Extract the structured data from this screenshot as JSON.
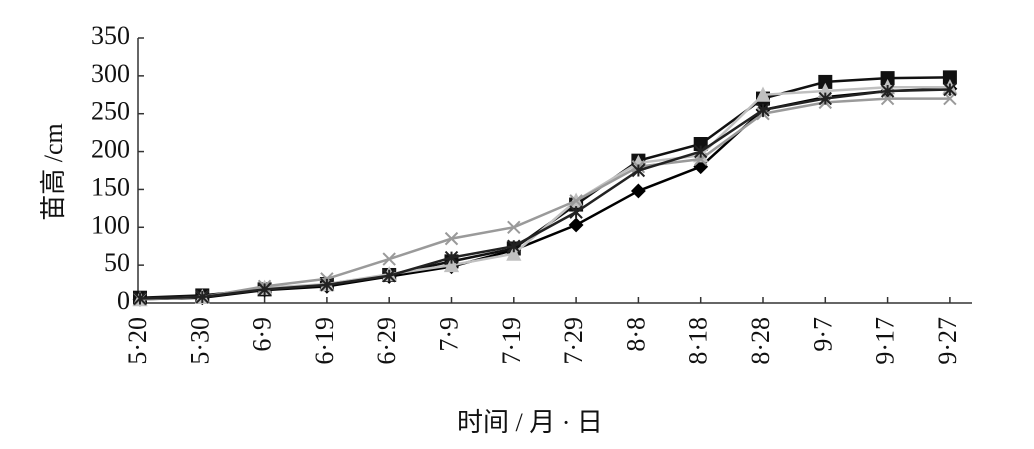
{
  "chart_data": {
    "type": "line",
    "y_label": "苗高 /cm",
    "x_label": "时间 / 月 · 日",
    "categories": [
      "5·20",
      "5·30",
      "6·9",
      "6·19",
      "6·29",
      "7·9",
      "7·19",
      "7·29",
      "8·8",
      "8·18",
      "8·28",
      "9·7",
      "9·17",
      "9·27"
    ],
    "series": [
      {
        "color": "#000000",
        "marker": "diamond",
        "values": [
          5,
          7,
          17,
          22,
          35,
          48,
          70,
          103,
          148,
          180,
          255,
          272,
          280,
          283
        ]
      },
      {
        "color": "#111111",
        "marker": "square",
        "values": [
          7,
          10,
          18,
          25,
          37,
          55,
          72,
          130,
          188,
          210,
          270,
          292,
          297,
          298
        ]
      },
      {
        "color": "#c0c0c0",
        "marker": "triangle",
        "values": [
          5,
          8,
          20,
          25,
          38,
          50,
          65,
          135,
          185,
          195,
          275,
          280,
          285,
          285
        ]
      },
      {
        "color": "#9a9a9a",
        "marker": "cross",
        "values": [
          5,
          8,
          22,
          32,
          58,
          85,
          100,
          135,
          180,
          190,
          250,
          265,
          270,
          270
        ]
      },
      {
        "color": "#222222",
        "marker": "star",
        "values": [
          6,
          8,
          18,
          24,
          36,
          60,
          75,
          120,
          175,
          200,
          255,
          270,
          280,
          282
        ]
      }
    ],
    "ylim": [
      0,
      350
    ],
    "yticks": [
      0,
      50,
      100,
      150,
      200,
      250,
      300,
      350
    ],
    "grid": false
  }
}
